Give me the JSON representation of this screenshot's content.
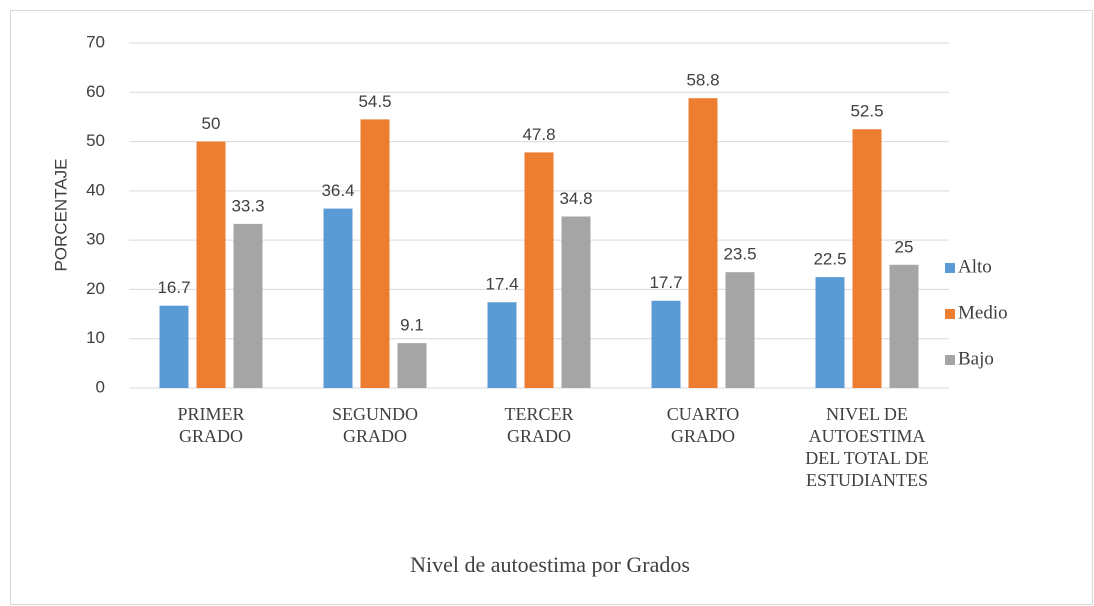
{
  "chart_data": {
    "type": "bar",
    "title": "Nivel de autoestima por Grados",
    "y_axis_label": "PORCENTAJE",
    "categories": [
      "PRIMER GRADO",
      "SEGUNDO GRADO",
      "TERCER GRADO",
      "CUARTO GRADO",
      "NIVEL DE AUTOESTIMA DEL TOTAL DE ESTUDIANTES"
    ],
    "series": [
      {
        "name": "Alto",
        "color": "#5b9bd5",
        "values": [
          16.7,
          36.4,
          17.4,
          17.7,
          22.5
        ]
      },
      {
        "name": "Medio",
        "color": "#ed7d31",
        "values": [
          50,
          54.5,
          47.8,
          58.8,
          52.5
        ]
      },
      {
        "name": "Bajo",
        "color": "#a5a5a5",
        "values": [
          33.3,
          9.1,
          34.8,
          23.5,
          25
        ]
      }
    ],
    "ylim": [
      0,
      70
    ],
    "yticks": [
      0,
      10,
      20,
      30,
      40,
      50,
      60,
      70
    ],
    "grid": true,
    "legend": "right"
  }
}
